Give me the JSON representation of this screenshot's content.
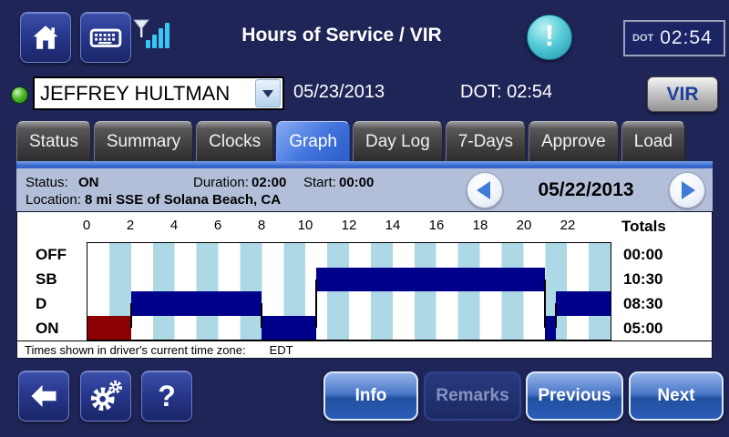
{
  "header": {
    "title": "Hours of Service / VIR",
    "dot_clock": {
      "label": "DOT",
      "time": "02:54"
    }
  },
  "driver_bar": {
    "driver_name": "JEFFREY HULTMAN",
    "current_date": "05/23/2013",
    "dot_label": "DOT:",
    "dot_time": "02:54",
    "vir_button_label": "VIR"
  },
  "tabs": {
    "items": [
      "Status",
      "Summary",
      "Clocks",
      "Graph",
      "Day Log",
      "7-Days",
      "Approve",
      "Load"
    ],
    "active": "Graph"
  },
  "status_bar": {
    "status_label": "Status:",
    "status_value": "ON",
    "duration_label": "Duration:",
    "duration_value": "02:00",
    "start_label": "Start:",
    "start_value": "00:00",
    "location_label": "Location:",
    "location_value": "8 mi SSE of Solana Beach, CA",
    "nav_date": "05/22/2013"
  },
  "chart_data": {
    "type": "area",
    "subtype": "hos-duty-status-graph",
    "title": "Daily duty status graph for 05/22/2013",
    "hours_span": 24,
    "hour_ticks": [
      0,
      2,
      4,
      6,
      8,
      10,
      12,
      14,
      16,
      18,
      20,
      22
    ],
    "rows": [
      "OFF",
      "SB",
      "D",
      "ON"
    ],
    "totals_header": "Totals",
    "totals": [
      "00:00",
      "10:30",
      "08:30",
      "05:00"
    ],
    "segments": [
      {
        "status": "ON",
        "start": 0,
        "end": 2,
        "selected": true
      },
      {
        "status": "D",
        "start": 2,
        "end": 8,
        "selected": false
      },
      {
        "status": "ON",
        "start": 8,
        "end": 10.5,
        "selected": false
      },
      {
        "status": "SB",
        "start": 10.5,
        "end": 21,
        "selected": false
      },
      {
        "status": "ON",
        "start": 21,
        "end": 21.5,
        "selected": false
      },
      {
        "status": "D",
        "start": 21.5,
        "end": 24,
        "selected": false
      }
    ],
    "colors": {
      "segment": "#00008b",
      "selected_segment": "#8b0000",
      "stripe": "#add8e6"
    }
  },
  "footnote": {
    "text": "Times shown in driver's current time zone:",
    "timezone": "EDT"
  },
  "footer_buttons": {
    "info": "Info",
    "remarks": "Remarks",
    "previous": "Previous",
    "next": "Next",
    "help": "?"
  },
  "colors": {
    "background": "#1f2557",
    "status_bar": "#b3bfd9",
    "active_tab": "#3c6fd8",
    "led_green": "#3db829",
    "signal_cyan": "#35c8f5",
    "alert_teal": "#3fc3d4"
  }
}
